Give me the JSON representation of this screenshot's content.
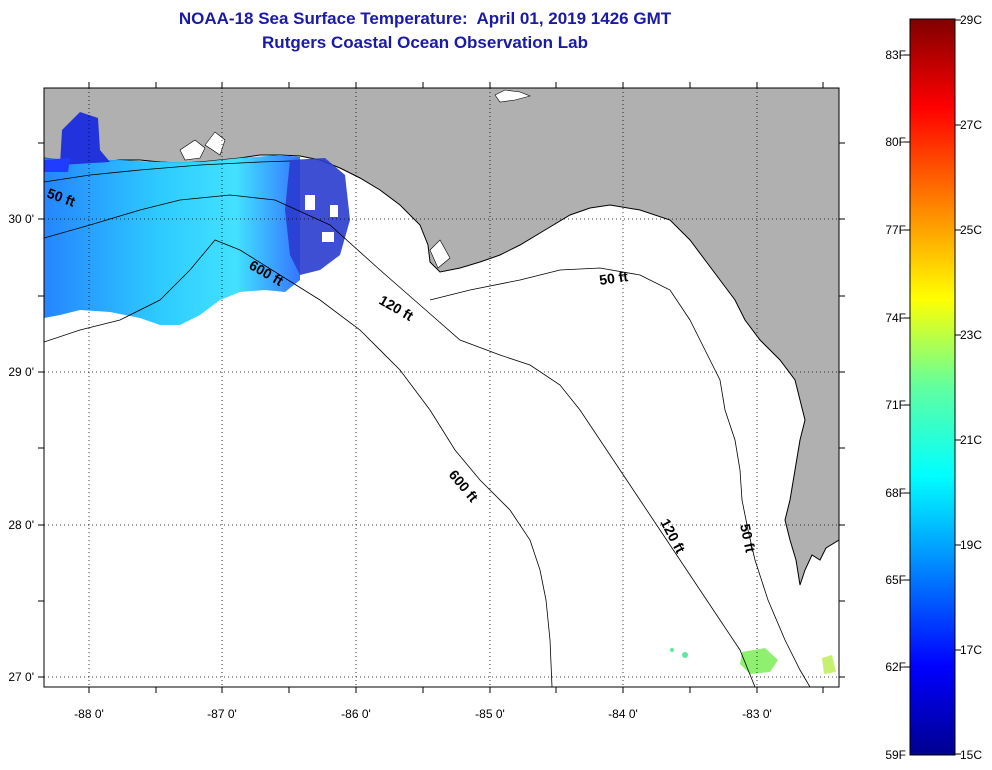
{
  "title": {
    "line1": "NOAA-18 Sea Surface Temperature:  April 01, 2019 1426 GMT",
    "line2": "Rutgers Coastal Ocean Observation Lab"
  },
  "map": {
    "lat_labels": [
      "30 0'",
      "29 0'",
      "28 0'",
      "27 0'"
    ],
    "lon_labels": [
      "-88 0'",
      "-87 0'",
      "-86 0'",
      "-85 0'",
      "-84 0'",
      "-83 0'"
    ],
    "land_color": "#b0b0b0",
    "isobath_labels": [
      "50 ft",
      "600 ft",
      "120 ft",
      "50 ft",
      "600 ft",
      "120 ft",
      "50 ft"
    ]
  },
  "colorbar": {
    "fahrenheit_labels": [
      "83F",
      "80F",
      "77F",
      "74F",
      "71F",
      "68F",
      "65F",
      "62F",
      "59F"
    ],
    "celsius_labels": [
      "29C",
      "27C",
      "25C",
      "23C",
      "21C",
      "19C",
      "17C",
      "15C"
    ],
    "colors": [
      "#00008f",
      "#0000ff",
      "#00a0ff",
      "#00ffff",
      "#60ff9f",
      "#ffff00",
      "#ff8000",
      "#ff0000",
      "#800000"
    ]
  }
}
